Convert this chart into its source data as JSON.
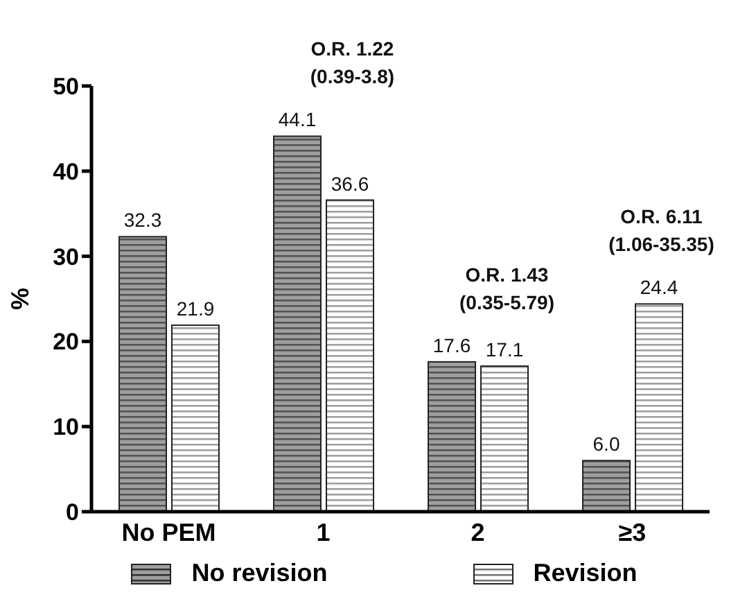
{
  "chart_data": {
    "type": "bar",
    "categories": [
      "No PEM",
      "1",
      "2",
      "≥3"
    ],
    "ylabel": "%",
    "ylim": [
      0,
      50
    ],
    "yticks": [
      0,
      10,
      20,
      30,
      40,
      50
    ],
    "grid": false,
    "legend": "bottom",
    "series": [
      {
        "name": "No revision",
        "color": "#9e9e9e",
        "values": [
          32.3,
          44.1,
          17.6,
          6.0
        ],
        "value_labels": [
          "32.3",
          "44.1",
          "17.6",
          "6.0"
        ]
      },
      {
        "name": "Revision",
        "color": "#ffffff",
        "values": [
          21.9,
          36.6,
          17.1,
          24.4
        ],
        "value_labels": [
          "21.9",
          "36.6",
          "17.1",
          "24.4"
        ]
      }
    ],
    "annotations": [
      {
        "text": "O.R. 1.22\n(0.39-3.8)",
        "x": "1",
        "y": 44.1
      },
      {
        "text": "O.R. 1.43\n(0.35-5.79)",
        "x": "2",
        "y": 17.6
      },
      {
        "text": "O.R. 6.11\n(1.06-35.35)",
        "x": "≥3",
        "y": 24.4
      }
    ]
  }
}
